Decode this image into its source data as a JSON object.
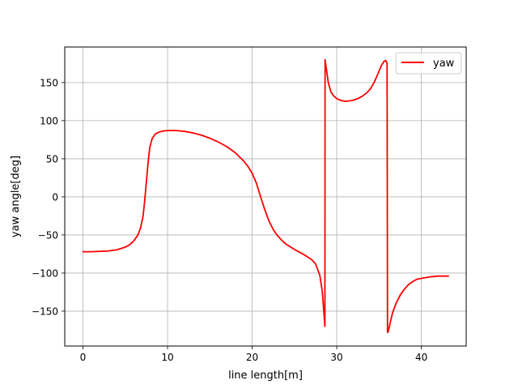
{
  "chart_data": {
    "type": "line",
    "title": "",
    "xlabel": "line length[m]",
    "ylabel": "yaw angle[deg]",
    "xlim": [
      -2.15,
      45.3
    ],
    "ylim": [
      -195.8,
      196.7
    ],
    "xticks": [
      0,
      10,
      20,
      30,
      40
    ],
    "yticks": [
      -150,
      -100,
      -50,
      0,
      50,
      100,
      150
    ],
    "xtick_labels": [
      "0",
      "10",
      "20",
      "30",
      "40"
    ],
    "ytick_labels": [
      "−150",
      "−100",
      "−50",
      "0",
      "50",
      "100",
      "150"
    ],
    "grid": true,
    "legend": {
      "position": "top-right",
      "entries": [
        "yaw"
      ]
    },
    "series": [
      {
        "name": "yaw",
        "color": "#ff0000",
        "x": [
          0,
          1,
          2,
          3,
          4,
          5,
          5.5,
          6,
          6.5,
          6.8,
          7.1,
          7.3,
          7.5,
          7.7,
          7.9,
          8.2,
          8.6,
          9,
          9.5,
          10,
          11,
          12,
          13,
          14,
          15,
          16,
          17,
          18,
          19,
          19.5,
          20,
          20.5,
          21,
          21.5,
          22,
          22.5,
          23,
          23.5,
          24,
          25,
          26,
          27,
          27.5,
          28,
          28.3,
          28.5,
          28.6,
          28.62,
          28.75,
          29,
          29.3,
          29.6,
          30,
          30.5,
          31,
          31.5,
          32,
          32.5,
          33,
          33.5,
          34,
          34.5,
          35,
          35.3,
          35.6,
          35.8,
          35.95,
          36,
          36.02,
          36.1,
          36.3,
          36.6,
          37,
          37.5,
          38,
          38.5,
          39,
          39.5,
          40,
          41,
          42,
          43.2
        ],
        "y": [
          -72,
          -72,
          -71.5,
          -71,
          -69.5,
          -66,
          -63,
          -58,
          -50,
          -41,
          -26,
          -5,
          20,
          45,
          65,
          77,
          83,
          85,
          86.5,
          87,
          87,
          86,
          84,
          81,
          77,
          72,
          66,
          58,
          47,
          40,
          31,
          18,
          0,
          -17,
          -32,
          -43,
          -51,
          -57,
          -62,
          -69,
          -75,
          -82,
          -88,
          -103,
          -125,
          -155,
          -170,
          180,
          170,
          150,
          138,
          133,
          129,
          126.5,
          125.5,
          126,
          127,
          129,
          132,
          136,
          142,
          152,
          165,
          173,
          178,
          179,
          175,
          -178,
          -178,
          -176,
          -166,
          -152,
          -140,
          -129,
          -121,
          -115,
          -111,
          -108,
          -107,
          -105,
          -104,
          -104
        ]
      }
    ]
  }
}
